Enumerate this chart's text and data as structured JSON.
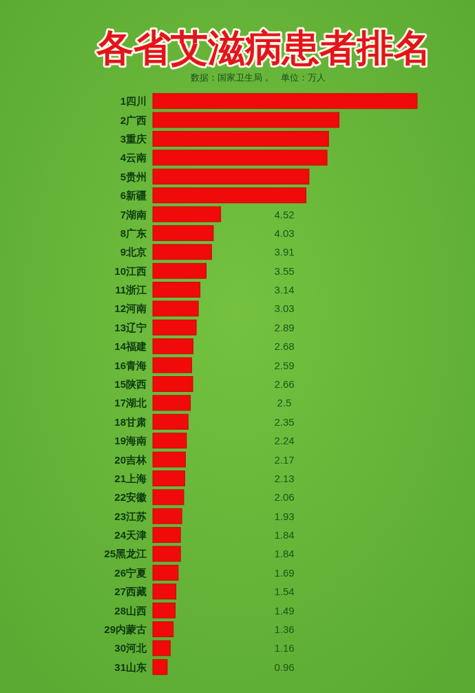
{
  "chart_data": {
    "type": "bar",
    "orientation": "horizontal",
    "title": "各省艾滋病患者排名",
    "subtitle": "数据：国家卫生局，    单位：万人",
    "categories": [
      "1四川",
      "2广西",
      "3重庆",
      "4云南",
      "5贵州",
      "6新疆",
      "7湖南",
      "8广东",
      "9北京",
      "10江西",
      "11浙江",
      "12河南",
      "13辽宁",
      "14福建",
      "16青海",
      "15陕西",
      "17湖北",
      "18甘肃",
      "19海南",
      "20吉林",
      "21上海",
      "22安徽",
      "23江苏",
      "24天津",
      "25黑龙江",
      "26宁夏",
      "27西藏",
      "28山西",
      "29内蒙古",
      "30河北",
      "31山东"
    ],
    "values": [
      17.6,
      12.4,
      11.7,
      11.6,
      10.4,
      10.2,
      4.52,
      4.03,
      3.91,
      3.55,
      3.14,
      3.03,
      2.89,
      2.68,
      2.59,
      2.66,
      2.5,
      2.35,
      2.24,
      2.17,
      2.13,
      2.06,
      1.93,
      1.84,
      1.84,
      1.69,
      1.54,
      1.49,
      1.36,
      1.16,
      0.96
    ],
    "value_labels": [
      null,
      null,
      null,
      null,
      null,
      null,
      "4.52",
      "4.03",
      "3.91",
      "3.55",
      "3.14",
      "3.03",
      "2.89",
      "2.68",
      "2.59",
      "2.66",
      "2.5",
      "2.35",
      "2.24",
      "2.17",
      "2.13",
      "2.06",
      "1.93",
      "1.84",
      "1.84",
      "1.69",
      "1.54",
      "1.49",
      "1.36",
      "1.16",
      "0.96"
    ],
    "color": "#f00a0a",
    "tick_labels": "y"
  }
}
